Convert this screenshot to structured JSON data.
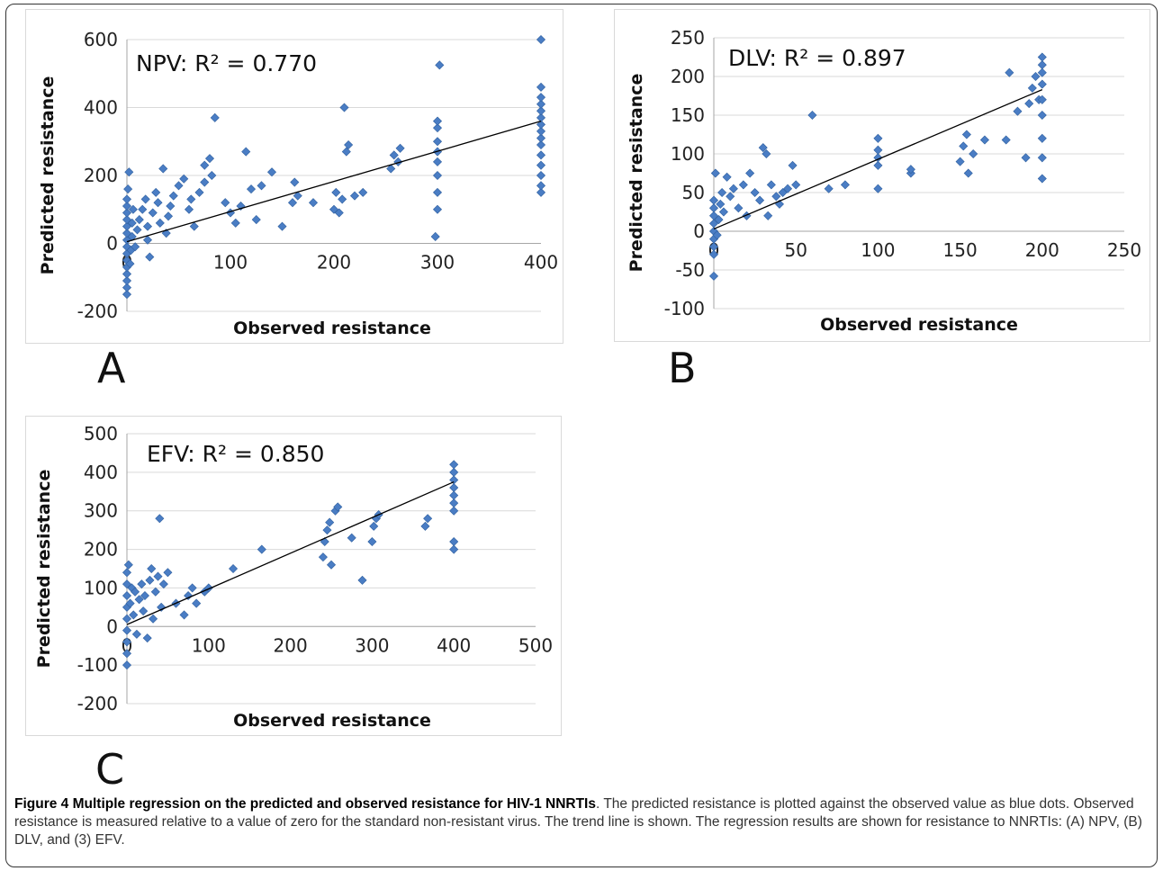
{
  "chart_data": [
    {
      "type": "scatter",
      "panel": "A",
      "annotation": "NPV: R² = 0.770",
      "xlabel": "Observed resistance",
      "ylabel": "Predicted resistance",
      "xlim": [
        0,
        400
      ],
      "ylim": [
        -200,
        600
      ],
      "xticks": [
        0,
        100,
        200,
        300,
        400
      ],
      "yticks": [
        -200,
        0,
        200,
        400,
        600
      ],
      "grid": true,
      "marker_color": "#4a7dc4",
      "trendline": [
        [
          0,
          5
        ],
        [
          400,
          360
        ]
      ],
      "points": [
        [
          0,
          -150
        ],
        [
          0,
          -130
        ],
        [
          0,
          -110
        ],
        [
          0,
          -90
        ],
        [
          0,
          -70
        ],
        [
          0,
          -50
        ],
        [
          0,
          -30
        ],
        [
          0,
          -10
        ],
        [
          0,
          10
        ],
        [
          0,
          30
        ],
        [
          0,
          50
        ],
        [
          0,
          70
        ],
        [
          0,
          90
        ],
        [
          0,
          110
        ],
        [
          0,
          130
        ],
        [
          2,
          210
        ],
        [
          1,
          160
        ],
        [
          3,
          -60
        ],
        [
          4,
          -20
        ],
        [
          5,
          20
        ],
        [
          5,
          60
        ],
        [
          6,
          100
        ],
        [
          8,
          -10
        ],
        [
          10,
          40
        ],
        [
          12,
          70
        ],
        [
          15,
          100
        ],
        [
          18,
          130
        ],
        [
          20,
          10
        ],
        [
          20,
          50
        ],
        [
          22,
          -40
        ],
        [
          25,
          90
        ],
        [
          28,
          150
        ],
        [
          30,
          120
        ],
        [
          32,
          60
        ],
        [
          35,
          220
        ],
        [
          38,
          30
        ],
        [
          40,
          80
        ],
        [
          42,
          110
        ],
        [
          45,
          140
        ],
        [
          50,
          170
        ],
        [
          55,
          190
        ],
        [
          60,
          100
        ],
        [
          62,
          130
        ],
        [
          65,
          50
        ],
        [
          70,
          150
        ],
        [
          75,
          180
        ],
        [
          75,
          230
        ],
        [
          80,
          250
        ],
        [
          82,
          200
        ],
        [
          85,
          370
        ],
        [
          95,
          120
        ],
        [
          100,
          90
        ],
        [
          105,
          60
        ],
        [
          110,
          110
        ],
        [
          115,
          270
        ],
        [
          120,
          160
        ],
        [
          125,
          70
        ],
        [
          130,
          170
        ],
        [
          140,
          210
        ],
        [
          150,
          50
        ],
        [
          160,
          120
        ],
        [
          162,
          180
        ],
        [
          165,
          140
        ],
        [
          180,
          120
        ],
        [
          200,
          100
        ],
        [
          202,
          150
        ],
        [
          205,
          90
        ],
        [
          208,
          130
        ],
        [
          210,
          400
        ],
        [
          212,
          270
        ],
        [
          214,
          290
        ],
        [
          220,
          140
        ],
        [
          228,
          150
        ],
        [
          255,
          220
        ],
        [
          258,
          260
        ],
        [
          262,
          240
        ],
        [
          264,
          280
        ],
        [
          298,
          20
        ],
        [
          300,
          100
        ],
        [
          300,
          150
        ],
        [
          300,
          200
        ],
        [
          300,
          240
        ],
        [
          300,
          270
        ],
        [
          300,
          300
        ],
        [
          300,
          340
        ],
        [
          300,
          360
        ],
        [
          302,
          525
        ],
        [
          400,
          150
        ],
        [
          400,
          170
        ],
        [
          400,
          200
        ],
        [
          400,
          230
        ],
        [
          400,
          260
        ],
        [
          400,
          290
        ],
        [
          400,
          310
        ],
        [
          400,
          330
        ],
        [
          400,
          350
        ],
        [
          400,
          370
        ],
        [
          400,
          390
        ],
        [
          400,
          410
        ],
        [
          400,
          430
        ],
        [
          400,
          460
        ],
        [
          400,
          600
        ]
      ]
    },
    {
      "type": "scatter",
      "panel": "B",
      "annotation": "DLV: R² = 0.897",
      "xlabel": "Observed resistance",
      "ylabel": "Predicted resistance",
      "xlim": [
        0,
        250
      ],
      "ylim": [
        -100,
        250
      ],
      "xticks": [
        0,
        50,
        100,
        150,
        200,
        250
      ],
      "yticks": [
        -100,
        -50,
        0,
        50,
        100,
        150,
        200,
        250
      ],
      "grid": true,
      "marker_color": "#4a7dc4",
      "trendline": [
        [
          0,
          3
        ],
        [
          200,
          183
        ]
      ],
      "points": [
        [
          0,
          -58
        ],
        [
          0,
          -30
        ],
        [
          0,
          -20
        ],
        [
          0,
          -10
        ],
        [
          0,
          0
        ],
        [
          0,
          10
        ],
        [
          0,
          20
        ],
        [
          0,
          30
        ],
        [
          0,
          40
        ],
        [
          1,
          75
        ],
        [
          2,
          -5
        ],
        [
          3,
          15
        ],
        [
          4,
          35
        ],
        [
          5,
          50
        ],
        [
          6,
          25
        ],
        [
          8,
          70
        ],
        [
          10,
          45
        ],
        [
          12,
          55
        ],
        [
          15,
          30
        ],
        [
          18,
          60
        ],
        [
          20,
          20
        ],
        [
          22,
          75
        ],
        [
          25,
          50
        ],
        [
          28,
          40
        ],
        [
          30,
          108
        ],
        [
          32,
          100
        ],
        [
          33,
          20
        ],
        [
          35,
          60
        ],
        [
          38,
          45
        ],
        [
          40,
          35
        ],
        [
          42,
          50
        ],
        [
          45,
          55
        ],
        [
          48,
          85
        ],
        [
          50,
          60
        ],
        [
          60,
          150
        ],
        [
          70,
          55
        ],
        [
          80,
          60
        ],
        [
          100,
          55
        ],
        [
          100,
          85
        ],
        [
          100,
          95
        ],
        [
          100,
          105
        ],
        [
          100,
          120
        ],
        [
          120,
          75
        ],
        [
          120,
          80
        ],
        [
          150,
          90
        ],
        [
          152,
          110
        ],
        [
          154,
          125
        ],
        [
          155,
          75
        ],
        [
          158,
          100
        ],
        [
          165,
          118
        ],
        [
          178,
          118
        ],
        [
          180,
          205
        ],
        [
          185,
          155
        ],
        [
          190,
          95
        ],
        [
          192,
          165
        ],
        [
          194,
          185
        ],
        [
          196,
          200
        ],
        [
          198,
          170
        ],
        [
          200,
          68
        ],
        [
          200,
          95
        ],
        [
          200,
          120
        ],
        [
          200,
          150
        ],
        [
          200,
          170
        ],
        [
          200,
          190
        ],
        [
          200,
          205
        ],
        [
          200,
          215
        ],
        [
          200,
          225
        ]
      ]
    },
    {
      "type": "scatter",
      "panel": "C",
      "annotation": "EFV: R² = 0.850",
      "xlabel": "Observed resistance",
      "ylabel": "Predicted resistance",
      "xlim": [
        0,
        500
      ],
      "ylim": [
        -200,
        500
      ],
      "xticks": [
        0,
        100,
        200,
        300,
        400,
        500
      ],
      "yticks": [
        -200,
        -100,
        0,
        100,
        200,
        300,
        400,
        500
      ],
      "grid": true,
      "marker_color": "#4a7dc4",
      "trendline": [
        [
          0,
          5
        ],
        [
          400,
          375
        ]
      ],
      "points": [
        [
          0,
          -100
        ],
        [
          0,
          -70
        ],
        [
          0,
          -40
        ],
        [
          0,
          -10
        ],
        [
          0,
          20
        ],
        [
          0,
          50
        ],
        [
          0,
          80
        ],
        [
          0,
          110
        ],
        [
          0,
          140
        ],
        [
          2,
          160
        ],
        [
          4,
          60
        ],
        [
          6,
          100
        ],
        [
          8,
          30
        ],
        [
          10,
          90
        ],
        [
          12,
          -20
        ],
        [
          15,
          70
        ],
        [
          18,
          110
        ],
        [
          20,
          40
        ],
        [
          22,
          80
        ],
        [
          25,
          -30
        ],
        [
          28,
          120
        ],
        [
          30,
          150
        ],
        [
          32,
          20
        ],
        [
          35,
          90
        ],
        [
          38,
          130
        ],
        [
          40,
          280
        ],
        [
          42,
          50
        ],
        [
          45,
          110
        ],
        [
          50,
          140
        ],
        [
          60,
          60
        ],
        [
          70,
          30
        ],
        [
          75,
          80
        ],
        [
          80,
          100
        ],
        [
          85,
          60
        ],
        [
          95,
          90
        ],
        [
          100,
          100
        ],
        [
          130,
          150
        ],
        [
          165,
          200
        ],
        [
          240,
          180
        ],
        [
          242,
          220
        ],
        [
          245,
          250
        ],
        [
          248,
          270
        ],
        [
          250,
          160
        ],
        [
          255,
          300
        ],
        [
          258,
          310
        ],
        [
          275,
          230
        ],
        [
          288,
          120
        ],
        [
          300,
          220
        ],
        [
          302,
          260
        ],
        [
          305,
          280
        ],
        [
          308,
          290
        ],
        [
          365,
          260
        ],
        [
          368,
          280
        ],
        [
          400,
          200
        ],
        [
          400,
          220
        ],
        [
          400,
          300
        ],
        [
          400,
          320
        ],
        [
          400,
          340
        ],
        [
          400,
          360
        ],
        [
          400,
          380
        ],
        [
          400,
          400
        ],
        [
          400,
          420
        ]
      ]
    }
  ],
  "panel_letters": {
    "a": "A",
    "b": "B",
    "c": "C"
  },
  "caption": {
    "title": "Figure 4 Multiple regression on the predicted and observed resistance for HIV-1 NNRTIs",
    "body": ". The predicted resistance is plotted against the observed value as blue dots. Observed resistance is measured relative to a value of zero for the standard non-resistant virus. The trend line is shown. The regression results are shown for resistance to NNRTIs: (A) NPV, (B) DLV, and (3) EFV."
  }
}
